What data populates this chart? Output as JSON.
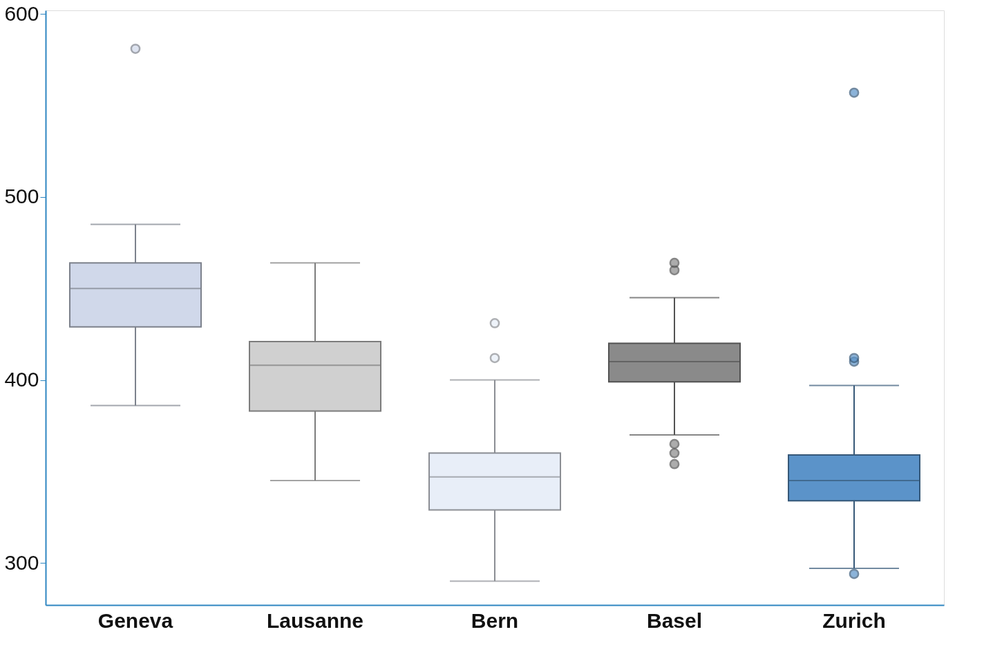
{
  "chart_data": {
    "type": "box",
    "categories": [
      "Geneva",
      "Lausanne",
      "Bern",
      "Basel",
      "Zurich"
    ],
    "boxes": [
      {
        "low": 386,
        "q1": 429,
        "median": 450,
        "q3": 464,
        "high": 485,
        "outliers": [
          581
        ]
      },
      {
        "low": 345,
        "q1": 383,
        "median": 408,
        "q3": 421,
        "high": 464
      },
      {
        "low": 290,
        "q1": 329,
        "median": 347,
        "q3": 360,
        "high": 400,
        "outliers": [
          412,
          431
        ]
      },
      {
        "low": 370,
        "q1": 399,
        "median": 410,
        "q3": 420,
        "high": 445,
        "outliers": [
          354,
          360,
          365,
          460,
          464
        ]
      },
      {
        "low": 297,
        "q1": 334,
        "median": 345,
        "q3": 359,
        "high": 397,
        "outliers": [
          294,
          410,
          412,
          557
        ]
      }
    ],
    "colors": [
      "#d0d8ea",
      "#d0d0d0",
      "#e8eef8",
      "#8a8a8a",
      "#5b93c9"
    ],
    "ylim": [
      277,
      602
    ],
    "yticks": [
      300,
      400,
      500,
      600
    ],
    "grid": false
  }
}
